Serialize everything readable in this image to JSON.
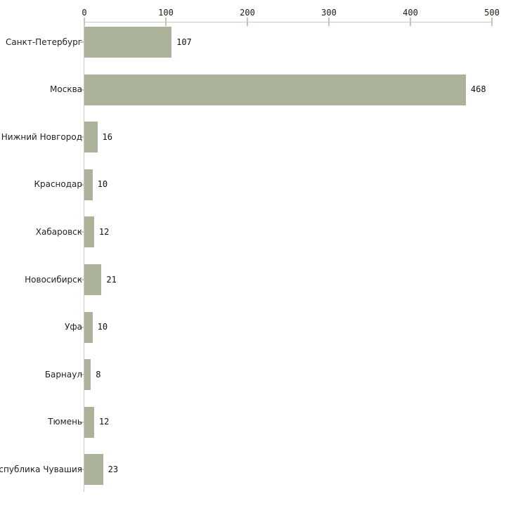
{
  "chart_data": {
    "type": "bar",
    "orientation": "horizontal",
    "title": "",
    "xlabel": "",
    "ylabel": "",
    "categories": [
      "Санкт-Петербург",
      "Москва",
      "Нижний Новгород",
      "Краснодар",
      "Хабаровск",
      "Новосибирск",
      "Уфа",
      "Барнаул",
      "Тюмень",
      "Республика Чувашия"
    ],
    "values": [
      107,
      468,
      16,
      10,
      12,
      21,
      10,
      8,
      12,
      23
    ],
    "value_labels": [
      "107",
      "468",
      "16",
      "10",
      "12",
      "21",
      "10",
      "8",
      "12",
      "23"
    ],
    "xlim": [
      0,
      500
    ],
    "x_ticks": [
      0,
      100,
      200,
      300,
      400,
      500
    ],
    "grid": "off",
    "legend": "none",
    "colors": {
      "bar_fill": "#abb29a",
      "axis_line": "#c9c9c9",
      "tick_mark": "#c6c6a2",
      "category_text": "#222222",
      "value_text": "#111111",
      "background": "#ffffff"
    }
  }
}
